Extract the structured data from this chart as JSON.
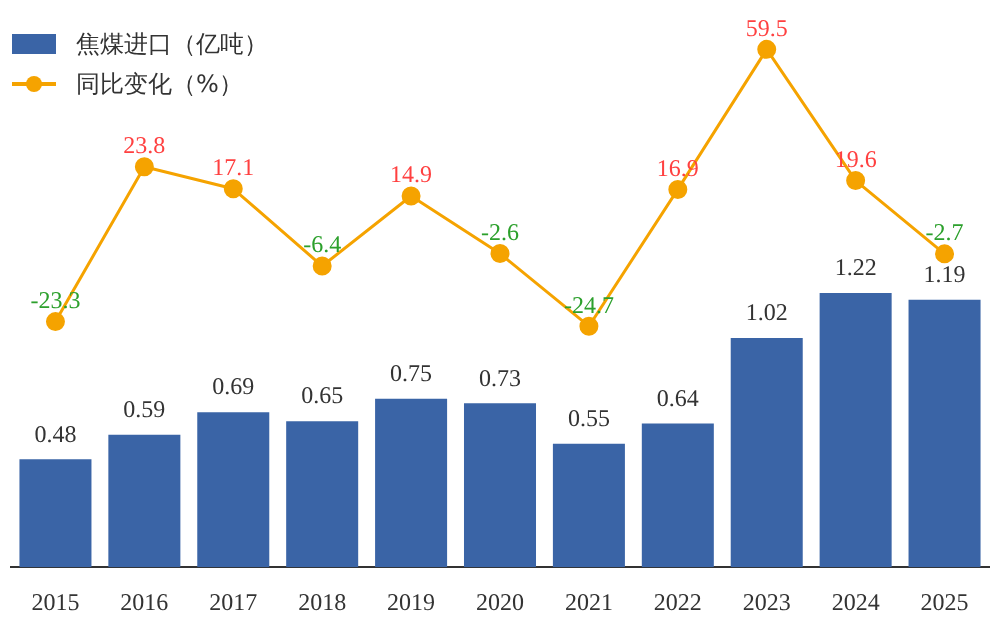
{
  "chart_data": {
    "type": "bar",
    "categories": [
      "2015",
      "2016",
      "2017",
      "2018",
      "2019",
      "2020",
      "2021",
      "2022",
      "2023",
      "2024",
      "2025"
    ],
    "series": [
      {
        "name": "焦煤进口（亿吨）",
        "color": "#3a64a6",
        "values": [
          0.48,
          0.59,
          0.69,
          0.65,
          0.75,
          0.73,
          0.55,
          0.64,
          1.02,
          1.22,
          1.19
        ]
      },
      {
        "name": "同比变化（%）",
        "type": "line",
        "axis": "y2",
        "color": "#f5a300",
        "values": [
          -23.3,
          23.8,
          17.1,
          -6.4,
          14.9,
          -2.6,
          -24.7,
          16.9,
          59.5,
          19.6,
          -2.7
        ]
      }
    ],
    "ylim": [
      0,
      2.4
    ],
    "y2lim": [
      -98,
      66
    ],
    "tick_labels": "x",
    "grid": false,
    "legend": "top left",
    "marker": "circle",
    "line_style": "solid",
    "data_labels": true
  }
}
